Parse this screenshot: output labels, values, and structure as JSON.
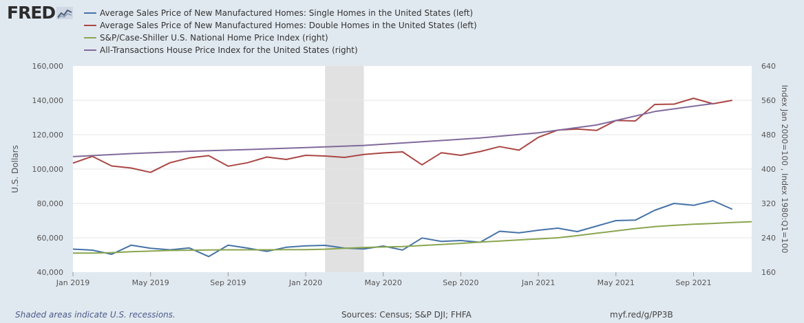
{
  "header": {
    "logo_text": "FRED",
    "logo_icon": "fred-chart-icon"
  },
  "legend": [
    {
      "label": "Average Sales Price of New Manufactured Homes: Single Homes in the United States (left)",
      "color": "#4572a7"
    },
    {
      "label": "Average Sales Price of New Manufactured Homes: Double Homes in the United States (left)",
      "color": "#aa4643"
    },
    {
      "label": "S&P/Case-Shiller U.S. National Home Price Index (right)",
      "color": "#89a54e"
    },
    {
      "label": "All-Transactions House Price Index for the United States (right)",
      "color": "#80699b"
    }
  ],
  "footer": {
    "recession_note": "Shaded areas indicate U.S. recessions.",
    "sources": "Sources: Census; S&P DJI; FHFA",
    "link": "myf.red/g/PP3B"
  },
  "chart_data": {
    "type": "line",
    "ylabel_left": "U.S. Dollars",
    "ylabel_right": "Index Jan 2000=100 , Index 1980:Q1=100",
    "ylim_left": [
      40000,
      160000
    ],
    "ylim_right": [
      160,
      640
    ],
    "yticks_left": [
      "40,000",
      "60,000",
      "80,000",
      "100,000",
      "120,000",
      "140,000",
      "160,000"
    ],
    "yticks_right": [
      "160",
      "240",
      "320",
      "400",
      "480",
      "560",
      "640"
    ],
    "xticks": [
      "Jan 2019",
      "May 2019",
      "Sep 2019",
      "Jan 2020",
      "May 2020",
      "Sep 2020",
      "Jan 2021",
      "May 2021",
      "Sep 2021"
    ],
    "xlim": [
      "2019-01",
      "2021-12"
    ],
    "recession": {
      "start": "2020-02",
      "end": "2020-04"
    },
    "grid": true,
    "series": [
      {
        "name": "Average Sales Price of New Manufactured Homes: Single Homes in the United States (left)",
        "axis": "left",
        "color": "#4572a7",
        "points": [
          [
            "2019-01",
            53400
          ],
          [
            "2019-02",
            52800
          ],
          [
            "2019-03",
            50400
          ],
          [
            "2019-04",
            55700
          ],
          [
            "2019-05",
            53900
          ],
          [
            "2019-06",
            53000
          ],
          [
            "2019-07",
            54100
          ],
          [
            "2019-08",
            49100
          ],
          [
            "2019-09",
            55700
          ],
          [
            "2019-10",
            54000
          ],
          [
            "2019-11",
            52100
          ],
          [
            "2019-12",
            54500
          ],
          [
            "2020-01",
            55300
          ],
          [
            "2020-02",
            55600
          ],
          [
            "2020-03",
            54000
          ],
          [
            "2020-04",
            53500
          ],
          [
            "2020-05",
            55200
          ],
          [
            "2020-06",
            52900
          ],
          [
            "2020-07",
            59900
          ],
          [
            "2020-08",
            57900
          ],
          [
            "2020-09",
            58400
          ],
          [
            "2020-10",
            57400
          ],
          [
            "2020-11",
            63800
          ],
          [
            "2020-12",
            62900
          ],
          [
            "2021-01",
            64400
          ],
          [
            "2021-02",
            65600
          ],
          [
            "2021-03",
            63600
          ],
          [
            "2021-04",
            66800
          ],
          [
            "2021-05",
            70000
          ],
          [
            "2021-06",
            70300
          ],
          [
            "2021-07",
            76000
          ],
          [
            "2021-08",
            80000
          ],
          [
            "2021-09",
            78900
          ],
          [
            "2021-10",
            81600
          ],
          [
            "2021-11",
            76600
          ]
        ]
      },
      {
        "name": "Average Sales Price of New Manufactured Homes: Double Homes in the United States (left)",
        "axis": "left",
        "color": "#aa4643",
        "points": [
          [
            "2019-01",
            103500
          ],
          [
            "2019-02",
            107400
          ],
          [
            "2019-03",
            101800
          ],
          [
            "2019-04",
            100600
          ],
          [
            "2019-05",
            98100
          ],
          [
            "2019-06",
            103700
          ],
          [
            "2019-07",
            106500
          ],
          [
            "2019-08",
            107800
          ],
          [
            "2019-09",
            101700
          ],
          [
            "2019-10",
            103700
          ],
          [
            "2019-11",
            107000
          ],
          [
            "2019-12",
            105600
          ],
          [
            "2020-01",
            108000
          ],
          [
            "2020-02",
            107600
          ],
          [
            "2020-03",
            106800
          ],
          [
            "2020-04",
            108500
          ],
          [
            "2020-05",
            109400
          ],
          [
            "2020-06",
            110000
          ],
          [
            "2020-07",
            102500
          ],
          [
            "2020-08",
            109500
          ],
          [
            "2020-09",
            108000
          ],
          [
            "2020-10",
            110200
          ],
          [
            "2020-11",
            113100
          ],
          [
            "2020-12",
            111000
          ],
          [
            "2021-01",
            118500
          ],
          [
            "2021-02",
            122700
          ],
          [
            "2021-03",
            123300
          ],
          [
            "2021-04",
            122500
          ],
          [
            "2021-05",
            128300
          ],
          [
            "2021-06",
            128000
          ],
          [
            "2021-07",
            137600
          ],
          [
            "2021-08",
            137800
          ],
          [
            "2021-09",
            141200
          ],
          [
            "2021-10",
            138000
          ],
          [
            "2021-11",
            140000
          ]
        ]
      },
      {
        "name": "S&P/Case-Shiller U.S. National Home Price Index (right)",
        "axis": "right",
        "color": "#89a54e",
        "points": [
          [
            "2019-01",
            204.5
          ],
          [
            "2019-02",
            204.5
          ],
          [
            "2019-03",
            205.5
          ],
          [
            "2019-04",
            207.5
          ],
          [
            "2019-05",
            209
          ],
          [
            "2019-06",
            210.5
          ],
          [
            "2019-07",
            211
          ],
          [
            "2019-08",
            211.5
          ],
          [
            "2019-09",
            212
          ],
          [
            "2019-10",
            212
          ],
          [
            "2019-11",
            212
          ],
          [
            "2019-12",
            212.5
          ],
          [
            "2020-01",
            212.5
          ],
          [
            "2020-02",
            213.5
          ],
          [
            "2020-03",
            215.5
          ],
          [
            "2020-04",
            217.5
          ],
          [
            "2020-05",
            218.5
          ],
          [
            "2020-06",
            219.5
          ],
          [
            "2020-07",
            222
          ],
          [
            "2020-08",
            224.5
          ],
          [
            "2020-09",
            227
          ],
          [
            "2020-10",
            230
          ],
          [
            "2020-11",
            232.5
          ],
          [
            "2020-12",
            235
          ],
          [
            "2021-01",
            237.5
          ],
          [
            "2021-02",
            240
          ],
          [
            "2021-03",
            245
          ],
          [
            "2021-04",
            250.5
          ],
          [
            "2021-05",
            256
          ],
          [
            "2021-06",
            261.5
          ],
          [
            "2021-07",
            266
          ],
          [
            "2021-08",
            269
          ],
          [
            "2021-09",
            271.5
          ],
          [
            "2021-10",
            273.5
          ],
          [
            "2021-11",
            275.5
          ],
          [
            "2021-12",
            277.5
          ]
        ]
      },
      {
        "name": "All-Transactions House Price Index for the United States (right)",
        "axis": "right",
        "color": "#80699b",
        "points": [
          [
            "2019-01",
            429
          ],
          [
            "2019-04",
            436
          ],
          [
            "2019-07",
            441.5
          ],
          [
            "2019-10",
            445.5
          ],
          [
            "2020-01",
            450
          ],
          [
            "2020-04",
            455
          ],
          [
            "2020-07",
            463.5
          ],
          [
            "2020-10",
            472.5
          ],
          [
            "2021-01",
            484.5
          ],
          [
            "2021-04",
            502.5
          ],
          [
            "2021-07",
            534
          ],
          [
            "2021-10",
            552.5
          ]
        ]
      }
    ]
  }
}
